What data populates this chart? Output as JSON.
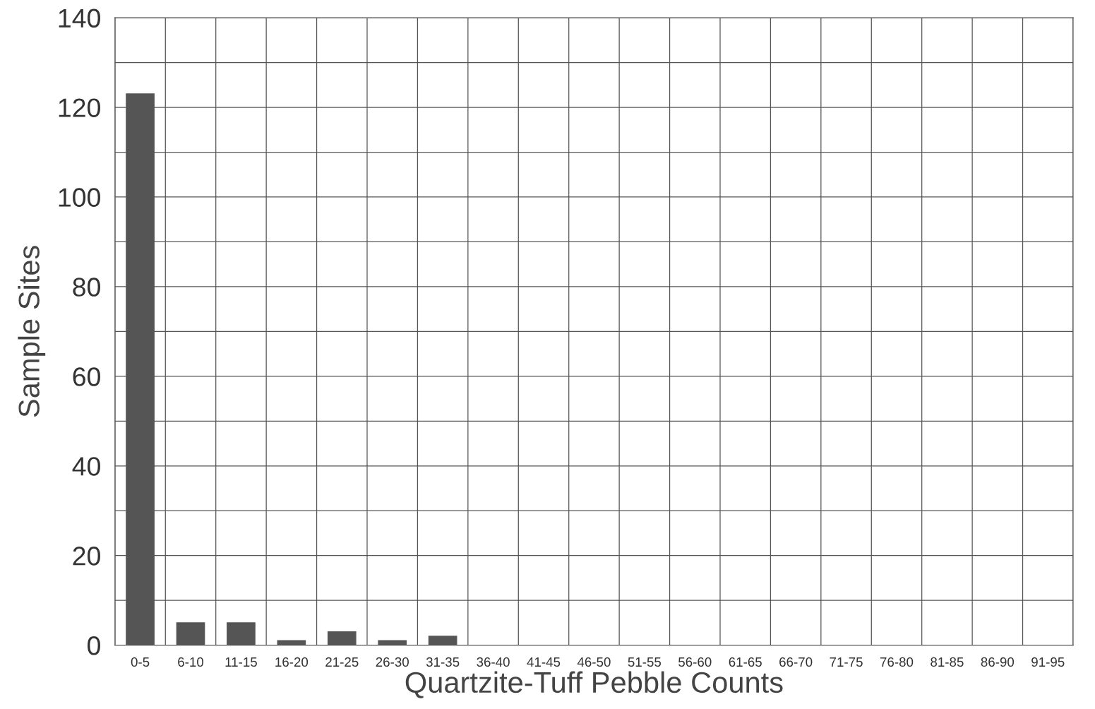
{
  "chart_data": {
    "type": "bar",
    "xlabel": "Quartzite-Tuff Pebble Counts",
    "ylabel": "Sample Sites",
    "categories": [
      "0-5",
      "6-10",
      "11-15",
      "16-20",
      "21-25",
      "26-30",
      "31-35",
      "36-40",
      "41-45",
      "46-50",
      "51-55",
      "56-60",
      "61-65",
      "66-70",
      "71-75",
      "76-80",
      "81-85",
      "86-90",
      "91-95"
    ],
    "values": [
      123,
      5,
      5,
      1,
      3,
      1,
      2,
      0,
      0,
      0,
      0,
      0,
      0,
      0,
      0,
      0,
      0,
      0,
      0
    ],
    "color": "#555555",
    "ylim": [
      0,
      140
    ],
    "yticks": [
      0,
      {
        "value": 10,
        "label": null
      },
      20,
      {
        "value": 30,
        "label": null
      },
      40,
      {
        "value": 50,
        "label": null
      },
      60,
      {
        "value": 70,
        "label": null
      },
      80,
      {
        "value": 90,
        "label": null
      },
      100,
      {
        "value": 110,
        "label": null
      },
      120,
      {
        "value": 130,
        "label": null
      },
      140
    ],
    "grid": true
  }
}
